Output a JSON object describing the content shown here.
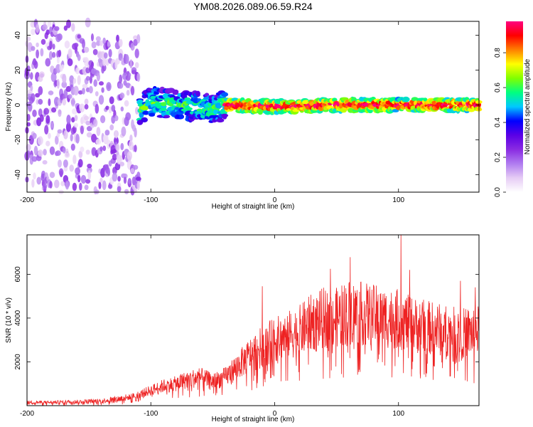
{
  "chart_data": [
    {
      "type": "heatmap",
      "title": "YM08.2026.089.06.59.R24",
      "xlabel": "Height of straight line (km)",
      "ylabel": "Frequency (Hz)",
      "xlim": [
        -200,
        165
      ],
      "ylim": [
        -50,
        48
      ],
      "xticks": [
        -200,
        -100,
        0,
        100
      ],
      "yticks": [
        -40,
        -20,
        0,
        20,
        40
      ],
      "colorbar": {
        "label": "Normalized spectral amplitude",
        "range": [
          0,
          0.98
        ],
        "ticks": [
          "0.0",
          "0.2",
          "0.4",
          "0.6",
          "0.8"
        ],
        "colormap": [
          "#ffffff",
          "#e6ccf5",
          "#b07cf0",
          "#8a2be2",
          "#5a00e6",
          "#0000ff",
          "#00c8ff",
          "#00ff80",
          "#80ff00",
          "#ffff00",
          "#ff8000",
          "#ff0000",
          "#ff0080"
        ]
      },
      "ridge": {
        "x": [
          -200,
          -150,
          -140,
          -120,
          -110,
          -100,
          -80,
          -60,
          -50,
          -40,
          0,
          50,
          100,
          165
        ],
        "center_freq": [
          0,
          -6,
          -5,
          -6,
          -5,
          2,
          0,
          -1,
          -3,
          0,
          -1,
          0,
          0,
          0
        ]
      }
    },
    {
      "type": "line",
      "xlabel": "Height of straight line (km)",
      "ylabel": "SNR (10 * v/v)",
      "xlim": [
        -200,
        165
      ],
      "ylim": [
        0,
        7800
      ],
      "xticks": [
        -200,
        -100,
        0,
        100
      ],
      "yticks": [
        2000,
        4000,
        6000
      ],
      "series": [
        {
          "name": "SNR",
          "color": "#ee2222",
          "x": [
            -200,
            -180,
            -160,
            -140,
            -120,
            -110,
            -100,
            -90,
            -80,
            -70,
            -60,
            -50,
            -40,
            -30,
            -20,
            -10,
            0,
            10,
            20,
            30,
            40,
            50,
            60,
            70,
            80,
            90,
            100,
            110,
            120,
            130,
            140,
            150,
            165
          ],
          "y": [
            150,
            150,
            180,
            220,
            350,
            500,
            700,
            900,
            1000,
            1200,
            1300,
            1100,
            1300,
            1800,
            2300,
            2700,
            3000,
            3200,
            3400,
            3800,
            4000,
            4000,
            4300,
            4200,
            4100,
            4000,
            3950,
            3700,
            3600,
            3500,
            3400,
            3300,
            3400
          ]
        }
      ],
      "spikes": [
        {
          "x": -10,
          "y": 5450
        },
        {
          "x": 45,
          "y": 6250
        },
        {
          "x": 61,
          "y": 6780
        },
        {
          "x": 102,
          "y": 7800
        },
        {
          "x": 109,
          "y": 6200
        },
        {
          "x": 150,
          "y": 5700
        },
        {
          "x": 162,
          "y": 5400
        }
      ]
    }
  ]
}
